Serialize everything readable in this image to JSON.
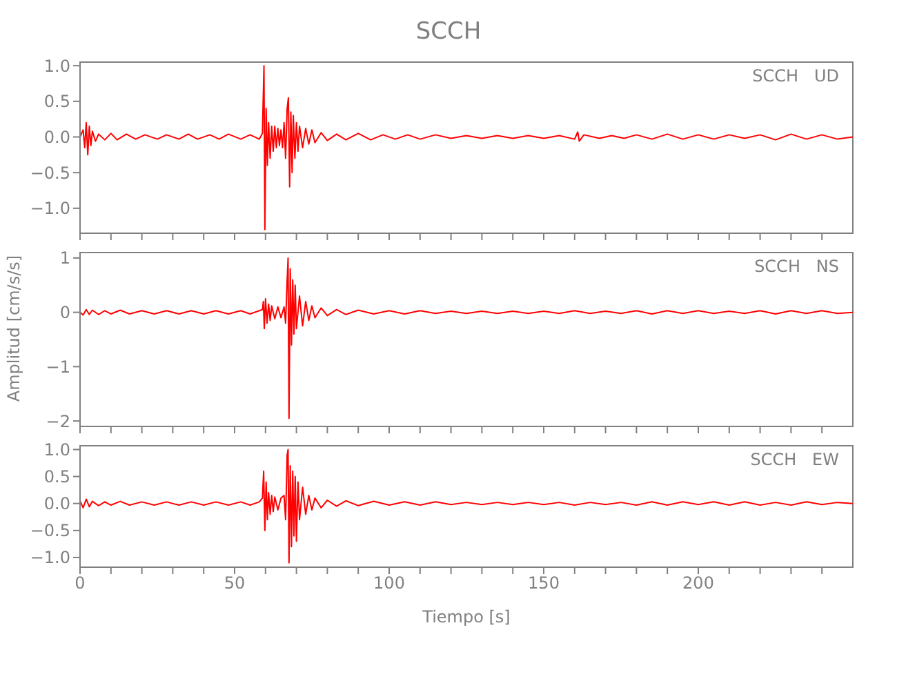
{
  "chart_data": [
    {
      "type": "line",
      "title": "SCCH",
      "annotations": [
        "SCCH   UD"
      ],
      "xlim": [
        0,
        250
      ],
      "xticks": [
        0,
        {
          "value": 10,
          "label": null
        },
        {
          "value": 20,
          "label": null
        },
        {
          "value": 30,
          "label": null
        },
        {
          "value": 40,
          "label": null
        },
        50,
        {
          "value": 60,
          "label": null
        },
        {
          "value": 70,
          "label": null
        },
        {
          "value": 80,
          "label": null
        },
        {
          "value": 90,
          "label": null
        },
        100,
        {
          "value": 110,
          "label": null
        },
        {
          "value": 120,
          "label": null
        },
        {
          "value": 130,
          "label": null
        },
        {
          "value": 140,
          "label": null
        },
        150,
        {
          "value": 160,
          "label": null
        },
        {
          "value": 170,
          "label": null
        },
        {
          "value": 180,
          "label": null
        },
        {
          "value": 190,
          "label": null
        },
        200,
        {
          "value": 210,
          "label": null
        },
        {
          "value": 220,
          "label": null
        },
        {
          "value": 230,
          "label": null
        },
        {
          "value": 240,
          "label": null
        }
      ],
      "ylim": [
        -1.35,
        1.05
      ],
      "yticks": [
        {
          "value": -1,
          "label": "−1.0"
        },
        {
          "value": -0.5,
          "label": "−0.5"
        },
        {
          "value": 0,
          "label": "0.0"
        },
        {
          "value": 0.5,
          "label": "0.5"
        },
        {
          "value": 1,
          "label": "1.0"
        }
      ],
      "tick_labels": "y",
      "grid": false,
      "marker": "none",
      "series": [
        {
          "color": "#ff0000",
          "x": [
            0,
            1,
            1.5,
            2,
            2.5,
            3,
            3.5,
            4,
            5,
            6,
            8,
            10,
            12,
            15,
            18,
            21,
            25,
            28,
            32,
            35,
            38,
            42,
            45,
            48,
            52,
            55,
            58,
            59,
            59.5,
            59.8,
            60.2,
            60.6,
            61,
            61.5,
            62,
            62.5,
            63,
            63.5,
            64,
            64.5,
            65,
            65.5,
            66,
            66.5,
            67,
            67.4,
            67.8,
            68.2,
            68.6,
            69,
            69.5,
            70,
            70.5,
            71,
            72,
            73,
            74,
            75,
            76,
            78,
            80,
            83,
            86,
            90,
            94,
            98,
            102,
            106,
            110,
            115,
            120,
            125,
            130,
            135,
            140,
            145,
            150,
            155,
            160,
            161,
            161.5,
            163,
            168,
            172,
            176,
            180,
            185,
            190,
            195,
            200,
            205,
            210,
            215,
            220,
            225,
            230,
            235,
            240,
            245,
            250
          ],
          "values": [
            0,
            0.1,
            -0.15,
            0.2,
            -0.25,
            0.15,
            -0.12,
            0.08,
            -0.06,
            0.04,
            -0.04,
            0.05,
            -0.04,
            0.04,
            -0.03,
            0.03,
            -0.03,
            0.03,
            -0.03,
            0.04,
            -0.03,
            0.03,
            -0.03,
            0.04,
            -0.03,
            0.03,
            -0.03,
            0.05,
            1.0,
            -1.3,
            0.4,
            -0.4,
            0.2,
            -0.3,
            0.15,
            -0.2,
            0.15,
            -0.15,
            0.12,
            -0.12,
            0.1,
            -0.15,
            0.2,
            -0.3,
            0.4,
            0.55,
            -0.7,
            0.35,
            -0.5,
            0.3,
            -0.3,
            0.2,
            -0.2,
            0.15,
            -0.15,
            0.12,
            -0.1,
            0.1,
            -0.08,
            0.06,
            -0.05,
            0.04,
            -0.04,
            0.05,
            -0.04,
            0.03,
            -0.03,
            0.03,
            -0.03,
            0.03,
            -0.02,
            0.02,
            -0.02,
            0.02,
            -0.02,
            0.02,
            -0.02,
            0.02,
            -0.03,
            0.07,
            -0.06,
            0.03,
            -0.02,
            0.02,
            -0.02,
            0.03,
            -0.03,
            0.04,
            -0.03,
            0.03,
            -0.03,
            0.03,
            -0.02,
            0.03,
            -0.04,
            0.04,
            -0.03,
            0.03,
            -0.03,
            0
          ]
        }
      ]
    },
    {
      "type": "line",
      "ylabel": "Amplitud [cm/s/s]",
      "annotations": [
        "SCCH   NS"
      ],
      "xlim": [
        0,
        250
      ],
      "xticks": [
        0,
        {
          "value": 10,
          "label": null
        },
        {
          "value": 20,
          "label": null
        },
        {
          "value": 30,
          "label": null
        },
        {
          "value": 40,
          "label": null
        },
        50,
        {
          "value": 60,
          "label": null
        },
        {
          "value": 70,
          "label": null
        },
        {
          "value": 80,
          "label": null
        },
        {
          "value": 90,
          "label": null
        },
        100,
        {
          "value": 110,
          "label": null
        },
        {
          "value": 120,
          "label": null
        },
        {
          "value": 130,
          "label": null
        },
        {
          "value": 140,
          "label": null
        },
        150,
        {
          "value": 160,
          "label": null
        },
        {
          "value": 170,
          "label": null
        },
        {
          "value": 180,
          "label": null
        },
        {
          "value": 190,
          "label": null
        },
        200,
        {
          "value": 210,
          "label": null
        },
        {
          "value": 220,
          "label": null
        },
        {
          "value": 230,
          "label": null
        },
        {
          "value": 240,
          "label": null
        }
      ],
      "ylim": [
        -2.1,
        1.1
      ],
      "yticks": [
        {
          "value": -2,
          "label": "−2"
        },
        {
          "value": -1,
          "label": "−1"
        },
        0,
        1
      ],
      "tick_labels": "y",
      "grid": false,
      "marker": "none",
      "series": [
        {
          "color": "#ff0000",
          "x": [
            0,
            1,
            2,
            3,
            4,
            6,
            8,
            10,
            13,
            16,
            20,
            24,
            28,
            32,
            36,
            40,
            44,
            48,
            52,
            55,
            58,
            59,
            59.3,
            59.6,
            60,
            60.5,
            61,
            61.5,
            62,
            63,
            64,
            65,
            66,
            66.5,
            67,
            67.3,
            67.6,
            68,
            68.4,
            68.8,
            69.2,
            69.6,
            70,
            71,
            72,
            73,
            74,
            75,
            76,
            78,
            80,
            83,
            86,
            90,
            95,
            100,
            105,
            110,
            115,
            120,
            125,
            130,
            135,
            140,
            145,
            150,
            155,
            160,
            165,
            170,
            175,
            180,
            185,
            190,
            195,
            200,
            205,
            210,
            215,
            220,
            225,
            230,
            235,
            240,
            245,
            250
          ],
          "values": [
            0,
            -0.05,
            0.05,
            -0.04,
            0.04,
            -0.04,
            0.03,
            -0.03,
            0.04,
            -0.03,
            0.03,
            -0.03,
            0.03,
            -0.03,
            0.03,
            -0.03,
            0.03,
            -0.03,
            0.03,
            -0.03,
            0.03,
            0.05,
            0.2,
            -0.3,
            0.25,
            -0.2,
            0.15,
            -0.15,
            0.12,
            -0.12,
            0.1,
            -0.1,
            0.1,
            -0.2,
            0.6,
            1.0,
            -1.95,
            0.8,
            -0.6,
            0.6,
            -0.4,
            0.5,
            -0.3,
            0.3,
            -0.25,
            0.2,
            -0.15,
            0.12,
            -0.1,
            0.08,
            -0.06,
            0.05,
            -0.04,
            0.04,
            -0.03,
            0.03,
            -0.03,
            0.03,
            -0.02,
            0.02,
            -0.02,
            0.02,
            -0.02,
            0.02,
            -0.02,
            0.02,
            -0.02,
            0.03,
            -0.02,
            0.02,
            -0.02,
            0.03,
            -0.03,
            0.03,
            -0.02,
            0.03,
            -0.02,
            0.02,
            -0.02,
            0.03,
            -0.03,
            0.03,
            -0.02,
            0.03,
            -0.02,
            0
          ]
        }
      ]
    },
    {
      "type": "line",
      "xlabel": "Tiempo [s]",
      "annotations": [
        "SCCH   EW"
      ],
      "xlim": [
        0,
        250
      ],
      "xticks": [
        0,
        {
          "value": 10,
          "label": null
        },
        {
          "value": 20,
          "label": null
        },
        {
          "value": 30,
          "label": null
        },
        {
          "value": 40,
          "label": null
        },
        50,
        {
          "value": 60,
          "label": null
        },
        {
          "value": 70,
          "label": null
        },
        {
          "value": 80,
          "label": null
        },
        {
          "value": 90,
          "label": null
        },
        100,
        {
          "value": 110,
          "label": null
        },
        {
          "value": 120,
          "label": null
        },
        {
          "value": 130,
          "label": null
        },
        {
          "value": 140,
          "label": null
        },
        150,
        {
          "value": 160,
          "label": null
        },
        {
          "value": 170,
          "label": null
        },
        {
          "value": 180,
          "label": null
        },
        {
          "value": 190,
          "label": null
        },
        200,
        {
          "value": 210,
          "label": null
        },
        {
          "value": 220,
          "label": null
        },
        {
          "value": 230,
          "label": null
        },
        {
          "value": 240,
          "label": null
        }
      ],
      "ylim": [
        -1.18,
        1.07
      ],
      "yticks": [
        {
          "value": -1,
          "label": "−1.0"
        },
        {
          "value": -0.5,
          "label": "−0.5"
        },
        {
          "value": 0,
          "label": "0.0"
        },
        {
          "value": 0.5,
          "label": "0.5"
        },
        {
          "value": 1,
          "label": "1.0"
        }
      ],
      "grid": false,
      "marker": "none",
      "series": [
        {
          "color": "#ff0000",
          "x": [
            0,
            1,
            2,
            3,
            4,
            6,
            8,
            10,
            13,
            16,
            20,
            24,
            28,
            32,
            36,
            40,
            44,
            48,
            52,
            55,
            58,
            59,
            59.4,
            59.8,
            60.2,
            60.6,
            61,
            61.5,
            62,
            62.5,
            63,
            64,
            65,
            66,
            66.5,
            67,
            67.3,
            67.6,
            68,
            68.4,
            68.8,
            69.2,
            69.6,
            70,
            70.5,
            71,
            72,
            73,
            74,
            75,
            76,
            78,
            80,
            83,
            86,
            90,
            95,
            100,
            105,
            110,
            115,
            120,
            125,
            130,
            135,
            140,
            145,
            150,
            155,
            160,
            165,
            170,
            175,
            180,
            185,
            190,
            195,
            200,
            205,
            210,
            215,
            220,
            225,
            230,
            235,
            240,
            245,
            250
          ],
          "values": [
            0.05,
            -0.08,
            0.08,
            -0.06,
            0.04,
            -0.04,
            0.03,
            -0.03,
            0.04,
            -0.03,
            0.03,
            -0.03,
            0.03,
            -0.03,
            0.03,
            -0.03,
            0.03,
            -0.03,
            0.03,
            -0.03,
            0.03,
            0.1,
            0.6,
            -0.5,
            0.4,
            -0.3,
            0.2,
            -0.2,
            0.15,
            -0.15,
            0.12,
            -0.12,
            0.1,
            0.15,
            -0.3,
            0.9,
            1.0,
            -1.1,
            0.7,
            -0.8,
            0.6,
            -0.6,
            0.5,
            -0.7,
            0.4,
            -0.3,
            0.3,
            -0.2,
            0.15,
            -0.12,
            0.1,
            -0.08,
            0.06,
            -0.05,
            0.05,
            -0.04,
            0.04,
            -0.03,
            0.03,
            -0.03,
            0.03,
            -0.02,
            0.02,
            -0.02,
            0.02,
            -0.02,
            0.02,
            -0.02,
            0.02,
            -0.03,
            0.02,
            -0.02,
            0.02,
            -0.03,
            0.03,
            -0.03,
            0.03,
            -0.02,
            0.03,
            -0.03,
            0.03,
            -0.03,
            0.02,
            -0.03,
            0.03,
            -0.02,
            0.02,
            0
          ]
        }
      ]
    }
  ]
}
